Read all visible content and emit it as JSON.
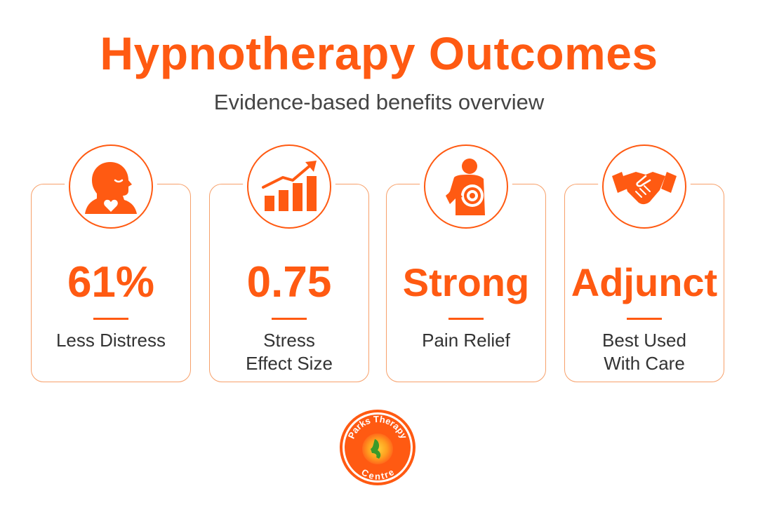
{
  "header": {
    "title": "Hypnotherapy Outcomes",
    "subtitle": "Evidence-based benefits overview"
  },
  "cards": [
    {
      "icon": "head-heart-icon",
      "stat": "61%",
      "label_lines": [
        "Less Distress"
      ]
    },
    {
      "icon": "rising-bar-chart-icon",
      "stat": "0.75",
      "label_lines": [
        "Stress",
        "Effect Size"
      ]
    },
    {
      "icon": "body-pain-target-icon",
      "stat": "Strong",
      "label_lines": [
        "Pain Relief"
      ]
    },
    {
      "icon": "handshake-icon",
      "stat": "Adjunct",
      "label_lines": [
        "Best Used",
        "With Care"
      ]
    }
  ],
  "logo": {
    "top_text": "Parks Therapy",
    "bottom_text": "Centre"
  },
  "colors": {
    "accent": "#ff5a12",
    "border": "#f7a06a",
    "text": "#333333"
  }
}
